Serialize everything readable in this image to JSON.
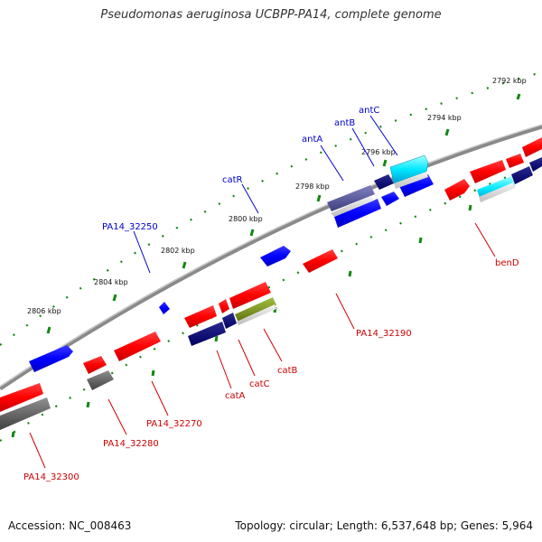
{
  "title": "Pseudomonas aeruginosa UCBPP-PA14, complete genome",
  "footer": {
    "accession": "Accession: NC_008463",
    "summary": "Topology: circular; Length: 6,537,648 bp; Genes: 5,964"
  },
  "colors": {
    "forward_label": "#0000cc",
    "reverse_label": "#cc0000",
    "backbone": "#888888",
    "tick": "#006600"
  },
  "kbp_labels": [
    "2792 kbp",
    "2794 kbp",
    "2796 kbp",
    "2798 kbp",
    "2800 kbp",
    "2802 kbp",
    "2804 kbp",
    "2806 kbp"
  ],
  "forward_genes": [
    {
      "label": "antC",
      "color": "cyan"
    },
    {
      "label": "antB",
      "color": "navy"
    },
    {
      "label": "antA",
      "color": "slate"
    },
    {
      "label": "catR",
      "color": "blue"
    },
    {
      "label": "PA14_32250",
      "color": "blue"
    }
  ],
  "reverse_genes": [
    {
      "label": "benD",
      "color": "cyan"
    },
    {
      "label": "PA14_32190",
      "color": "red"
    },
    {
      "label": "catB",
      "color": "olive"
    },
    {
      "label": "catC",
      "color": "navy"
    },
    {
      "label": "catA",
      "color": "navy"
    },
    {
      "label": "PA14_32270",
      "color": "red"
    },
    {
      "label": "PA14_32280",
      "color": "gray"
    },
    {
      "label": "PA14_32300",
      "color": "red"
    }
  ]
}
